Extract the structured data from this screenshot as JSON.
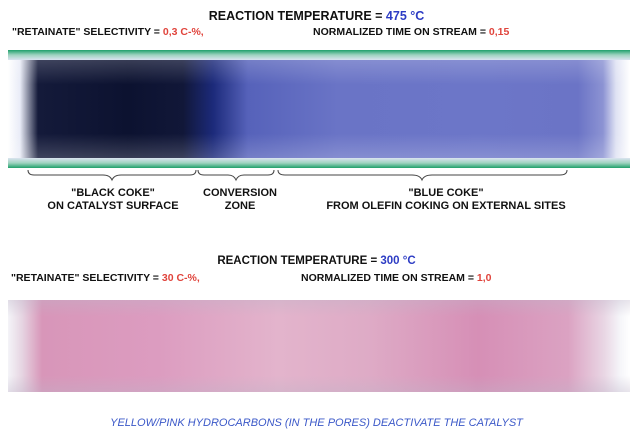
{
  "top_panel": {
    "title_label": "REACTION TEMPERATURE = ",
    "title_value": "475 °C",
    "selectivity_label": "\"RETAINATE\" SELECTIVITY = ",
    "selectivity_value": "0,3 C-%,",
    "time_label": "NORMALIZED TIME ON STREAM = ",
    "time_value": "0,15",
    "zones": [
      {
        "line1": "\"BLACK COKE\"",
        "line2": "ON CATALYST SURFACE"
      },
      {
        "line1": "CONVERSION",
        "line2": "ZONE"
      },
      {
        "line1": "\"BLUE COKE\"",
        "line2": "FROM OLEFIN COKING ON EXTERNAL SITES"
      }
    ]
  },
  "bottom_panel": {
    "title_label": "REACTION TEMPERATURE = ",
    "title_value": "300 °C",
    "selectivity_label": "\"RETAINATE\" SELECTIVITY = ",
    "selectivity_value": "30 C-%,",
    "time_label": "NORMALIZED TIME ON STREAM = ",
    "time_value": "1,0"
  },
  "caption": "YELLOW/PINK HYDROCARBONS (IN THE PORES) DEACTIVATE THE CATALYST",
  "colors": {
    "value_red": "#e0443c",
    "value_blue": "#2d3cc4",
    "caption_blue": "#3b58c8",
    "tube_green": "#1fa06b"
  }
}
